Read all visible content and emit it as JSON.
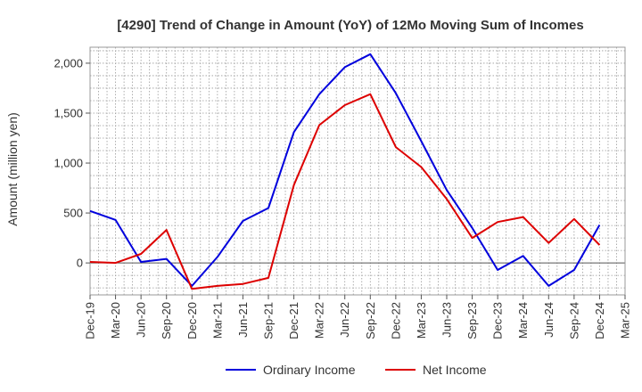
{
  "chart_data": {
    "type": "line",
    "title": "[4290]  Trend of Change in Amount (YoY) of 12Mo Moving Sum of Incomes",
    "xlabel": "",
    "ylabel": "Amount (million yen)",
    "ylim": [
      -320,
      2160
    ],
    "yticks": [
      0,
      500,
      1000,
      1500,
      2000
    ],
    "ytick_labels": [
      "0",
      "500",
      "1,000",
      "1,500",
      "2,000"
    ],
    "categories": [
      "Dec-19",
      "Mar-20",
      "Jun-20",
      "Sep-20",
      "Dec-20",
      "Mar-21",
      "Jun-21",
      "Sep-21",
      "Dec-21",
      "Mar-22",
      "Jun-22",
      "Sep-22",
      "Dec-22",
      "Mar-23",
      "Jun-23",
      "Sep-23",
      "Dec-23",
      "Mar-24",
      "Jun-24",
      "Sep-24",
      "Dec-24",
      "Mar-25"
    ],
    "grid": true,
    "legend_position": "bottom",
    "series": [
      {
        "name": "Ordinary Income",
        "color": "#0000dd",
        "values": [
          520,
          430,
          10,
          40,
          -230,
          60,
          420,
          550,
          1310,
          1690,
          1960,
          2090,
          1700,
          1220,
          730,
          350,
          -70,
          70,
          -230,
          -70,
          380,
          null
        ]
      },
      {
        "name": "Net Income",
        "color": "#dd0000",
        "values": [
          10,
          0,
          90,
          330,
          -260,
          -230,
          -210,
          -150,
          780,
          1380,
          1580,
          1690,
          1160,
          960,
          640,
          250,
          410,
          460,
          200,
          440,
          180,
          null
        ]
      }
    ]
  }
}
